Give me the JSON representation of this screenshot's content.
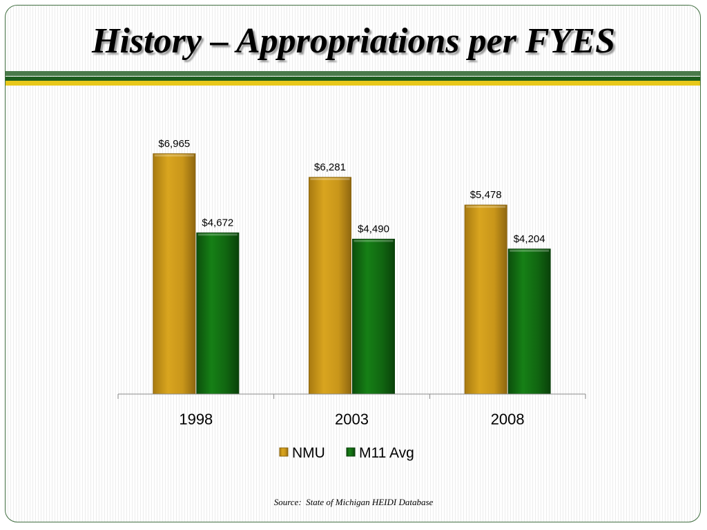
{
  "slide": {
    "title": "History – Appropriations per FYES",
    "source": "Source:  State of Michigan HEIDI Database"
  },
  "colors": {
    "nmu": "#c9961a",
    "nmu_dark": "#8a6410",
    "m11": "#116611",
    "m11_dark": "#0a3f0a",
    "band_green": "#1e5e1e",
    "band_gold": "#e8c81a"
  },
  "chart_data": {
    "type": "bar",
    "categories": [
      "1998",
      "2003",
      "2008"
    ],
    "series": [
      {
        "name": "NMU",
        "values": [
          6965,
          6281,
          5478
        ],
        "labels": [
          "$6,965",
          "$6,281",
          "$5,478"
        ]
      },
      {
        "name": "M11 Avg",
        "values": [
          4672,
          4490,
          4204
        ],
        "labels": [
          "$4,672",
          "$4,490",
          "$4,204"
        ]
      }
    ],
    "title": "",
    "xlabel": "",
    "ylabel": "",
    "ylim": [
      0,
      7000
    ],
    "grid": false,
    "legend": "bottom"
  }
}
